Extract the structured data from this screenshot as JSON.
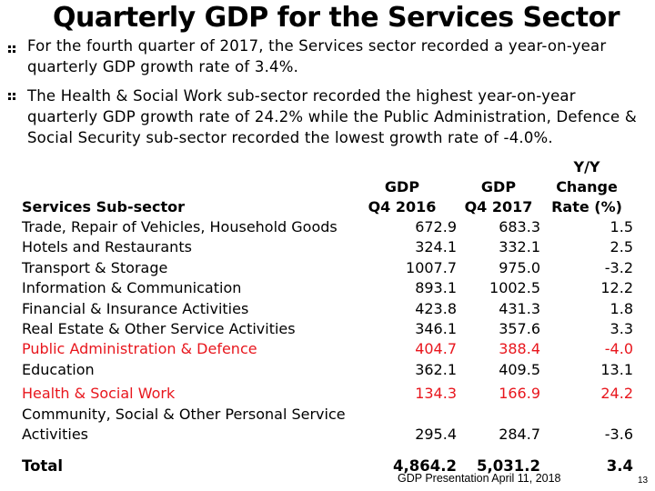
{
  "slide": {
    "title": "Quarterly GDP for the Services Sector",
    "bullets": [
      "For the fourth quarter of 2017, the Services sector recorded a year-on-year quarterly GDP growth rate of 3.4%.",
      "The Health & Social Work sub-sector recorded the highest year-on-year quarterly GDP growth rate of 24.2% while the Public Administration, Defence & Social Security sub-sector recorded the lowest growth rate of -4.0%."
    ],
    "footer": "GDP Presentation April 11, 2018",
    "page_number": "13"
  },
  "table": {
    "headers": {
      "sector": "Services Sub-sector",
      "q4_2016_line1": "GDP",
      "q4_2016_line2": "Q4 2016",
      "q4_2017_line1": "GDP",
      "q4_2017_line2": "Q4 2017",
      "change_line1": "Y/Y Change",
      "change_line2": "Rate (%)"
    },
    "rows": [
      {
        "sector": "Trade, Repair of Vehicles, Household Goods",
        "q4_2016": "672.9",
        "q4_2017": "683.3",
        "change": "1.5"
      },
      {
        "sector": "Hotels and Restaurants",
        "q4_2016": "324.1",
        "q4_2017": "332.1",
        "change": "2.5"
      },
      {
        "sector": "Transport & Storage",
        "q4_2016": "1007.7",
        "q4_2017": "975.0",
        "change": "-3.2"
      },
      {
        "sector": "Information & Communication",
        "q4_2016": "893.1",
        "q4_2017": "1002.5",
        "change": "12.2"
      },
      {
        "sector": "Financial & Insurance Activities",
        "q4_2016": "423.8",
        "q4_2017": "431.3",
        "change": "1.8"
      },
      {
        "sector": "Real Estate & Other Service Activities",
        "q4_2016": "346.1",
        "q4_2017": "357.6",
        "change": "3.3"
      },
      {
        "sector": "Public Administration & Defence",
        "q4_2016": "404.7",
        "q4_2017": "388.4",
        "change": "-4.0"
      },
      {
        "sector": "Education",
        "q4_2016": "362.1",
        "q4_2017": "409.5",
        "change": "13.1"
      },
      {
        "sector": "Health & Social Work",
        "q4_2016": "134.3",
        "q4_2017": "166.9",
        "change": "24.2"
      },
      {
        "sector": "Community, Social & Other Personal Service Activities",
        "q4_2016": "295.4",
        "q4_2017": "284.7",
        "change": "-3.6"
      }
    ],
    "total": {
      "sector": "Total",
      "q4_2016": "4,864.2",
      "q4_2017": "5,031.2",
      "change": "3.4"
    },
    "highlight_color": "#e8161d"
  }
}
